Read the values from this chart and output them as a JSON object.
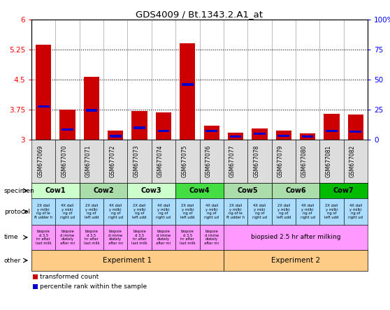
{
  "title": "GDS4009 / Bt.1343.2.A1_at",
  "samples": [
    "GSM677069",
    "GSM677070",
    "GSM677071",
    "GSM677072",
    "GSM677073",
    "GSM677074",
    "GSM677075",
    "GSM677076",
    "GSM677077",
    "GSM677078",
    "GSM677079",
    "GSM677080",
    "GSM677081",
    "GSM677082"
  ],
  "bar_values": [
    5.38,
    3.75,
    4.57,
    3.22,
    3.72,
    3.68,
    5.4,
    3.35,
    3.17,
    3.28,
    3.22,
    3.15,
    3.65,
    3.62
  ],
  "percentile_values": [
    3.83,
    3.25,
    3.73,
    3.09,
    3.3,
    3.22,
    4.38,
    3.22,
    3.08,
    3.15,
    3.1,
    3.08,
    3.22,
    3.2
  ],
  "ymin": 3.0,
  "ymax": 6.0,
  "yticks": [
    3.0,
    3.75,
    4.5,
    5.25,
    6.0
  ],
  "ytick_labels": [
    "3",
    "3.75",
    "4.5",
    "5.25",
    "6"
  ],
  "right_yticks_pct": [
    0,
    25,
    50,
    75,
    100
  ],
  "right_ytick_labels": [
    "0",
    "25",
    "50",
    "75",
    "100%"
  ],
  "dotted_lines": [
    3.75,
    4.5,
    5.25
  ],
  "bar_color": "#cc0000",
  "percentile_color": "#0000cc",
  "specimen_groups": [
    {
      "name": "Cow1",
      "start": 0,
      "end": 2,
      "color": "#ccffcc"
    },
    {
      "name": "Cow2",
      "start": 2,
      "end": 4,
      "color": "#aaffaa"
    },
    {
      "name": "Cow3",
      "start": 4,
      "end": 6,
      "color": "#ccffcc"
    },
    {
      "name": "Cow4",
      "start": 6,
      "end": 8,
      "color": "#44ee44"
    },
    {
      "name": "Cow5",
      "start": 8,
      "end": 10,
      "color": "#aaffaa"
    },
    {
      "name": "Cow6",
      "start": 10,
      "end": 12,
      "color": "#aaffaa"
    },
    {
      "name": "Cow7",
      "start": 12,
      "end": 14,
      "color": "#00cc00"
    }
  ],
  "protocol_texts": [
    "2X dail\ny milki\nng of le\nft udder\nh",
    "4X dail\ny miki\nng of\nright ud",
    "2X dail\ny milki\nng of\nleft udd",
    "4X dail\ny milki\nng of\nright ud",
    "2X dail\ny milki\nng of\nleft udd",
    "4X dail\ny milki\nng of\nright ud",
    "2X dail\ny milki\nng of\nleft udd",
    "4X dail\ny milki\nng of\nright ud",
    "2X dail\ny milki\nng of le\nft udder\nh",
    "4X dail\ny miki\nng of\nright ud",
    "2X dail\ny milki\nng of\nleft udd",
    "4X dail\ny milki\nng of\nright ud",
    "2X dail\ny milki\nng of\nleft udd",
    "4X dail\ny milki\nng of\nright ud"
  ],
  "protocol_color": "#aaddff",
  "time_texts_8": [
    "biopsie\nd 3.5\nhr afte\nr last mi\nlk",
    "biopsie\nd imme\ndiately\nafter mi",
    "biopsie\nd 3.5\nhr afte\nr last mi\nlk",
    "biopsie\nd imme\ndiately\nafter mi",
    "biopsie\nd 3.5\nhr afte\nr last mi\nlk",
    "biopsie\nd imme\ndiately\nafter mi",
    "biopsie\nd 3.5\nhr afte\nr last mi\nlk",
    "biopsie\nd imme\ndiately\nafter mi"
  ],
  "time_merged_text": "biopsied 2.5 hr after milking",
  "time_color": "#ff99ff",
  "other_groups": [
    {
      "text": "Experiment 1",
      "start": 0,
      "end": 8
    },
    {
      "text": "Experiment 2",
      "start": 8,
      "end": 14
    }
  ],
  "other_color": "#ffcc88",
  "row_labels": [
    "specimen",
    "protocol",
    "time",
    "other"
  ],
  "legend": [
    {
      "label": "transformed count",
      "color": "#cc0000"
    },
    {
      "label": "percentile rank within the sample",
      "color": "#0000cc"
    }
  ]
}
